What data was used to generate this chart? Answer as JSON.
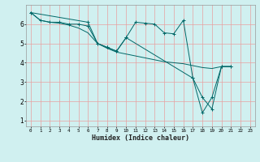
{
  "xlabel": "Humidex (Indice chaleur)",
  "background_color": "#d0f0f0",
  "grid_color": "#e8a0a0",
  "line_color": "#006868",
  "xlim": [
    -0.5,
    23.5
  ],
  "ylim": [
    0.7,
    7.0
  ],
  "xticks": [
    0,
    1,
    2,
    3,
    4,
    5,
    6,
    7,
    8,
    9,
    10,
    11,
    12,
    13,
    14,
    15,
    16,
    17,
    18,
    19,
    20,
    21,
    22,
    23
  ],
  "yticks": [
    1,
    2,
    3,
    4,
    5,
    6
  ],
  "line1_x": [
    0,
    1,
    2,
    3,
    4,
    5,
    6,
    7,
    8,
    9,
    10,
    11,
    12,
    13,
    14,
    15,
    16,
    17,
    18,
    19,
    20,
    21
  ],
  "line1_y": [
    6.6,
    6.2,
    6.1,
    6.1,
    6.0,
    6.0,
    5.9,
    5.0,
    4.8,
    4.6,
    5.3,
    6.1,
    6.05,
    6.0,
    5.55,
    5.5,
    6.2,
    3.2,
    2.2,
    1.6,
    3.8,
    3.8
  ],
  "line2_x": [
    0,
    1,
    2,
    3,
    4,
    5,
    6,
    7,
    8,
    9,
    10,
    11,
    12,
    13,
    14,
    15,
    16,
    17,
    18,
    19,
    20,
    21
  ],
  "line2_y": [
    6.6,
    6.2,
    6.1,
    6.05,
    5.95,
    5.8,
    5.55,
    5.0,
    4.75,
    4.55,
    4.45,
    4.35,
    4.25,
    4.15,
    4.05,
    4.0,
    3.95,
    3.85,
    3.75,
    3.7,
    3.8,
    3.8
  ],
  "line3_x": [
    0,
    6,
    7,
    8,
    9,
    10,
    17,
    18,
    19,
    20,
    21
  ],
  "line3_y": [
    6.6,
    6.1,
    5.0,
    4.8,
    4.6,
    5.3,
    3.2,
    1.4,
    2.2,
    3.8,
    3.8
  ]
}
